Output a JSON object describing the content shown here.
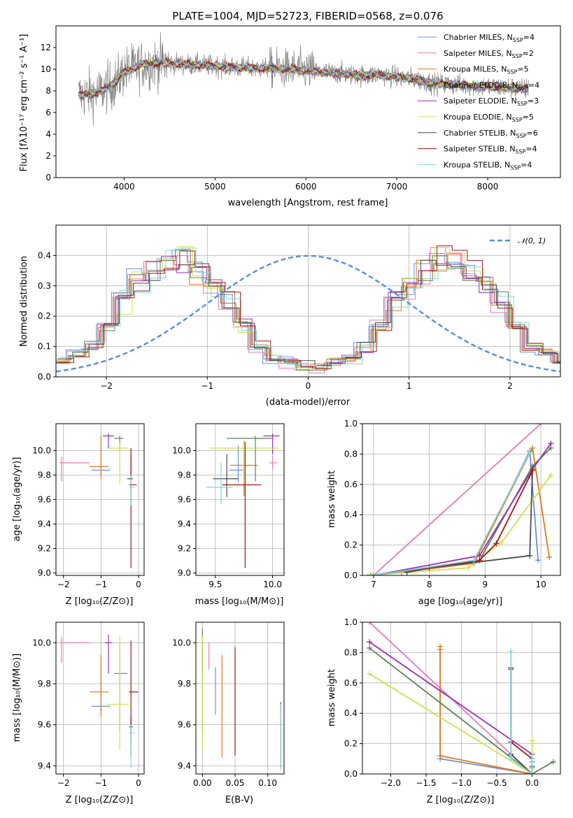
{
  "colors": {
    "Chabrier MILES": "#6a8fdc",
    "Salpeter MILES": "#e57ab0",
    "Kroupa MILES": "#e07a1f",
    "Chabrier ELODIE": "#5e7e5e",
    "Salpeter ELODIE": "#9b2fae",
    "Kroupa ELODIE": "#cfe04a",
    "Chabrier STELIB": "#4a4a4a",
    "Salpeter STELIB": "#a31515",
    "Kroupa STELIB": "#7fd8e0",
    "data": "#7f7f7f"
  },
  "chart_data": [
    {
      "id": "spectrum",
      "type": "line",
      "title": "PLATE=1004, MJD=52723, FIBERID=0568, z=0.076",
      "xlabel": "wavelength [Angstrom, rest frame]",
      "ylabel": "Flux [fλ10⁻¹⁷ erg cm⁻² s⁻¹ A⁻¹]",
      "xlim": [
        3250,
        8800
      ],
      "ylim": [
        0,
        14
      ],
      "xticks": [
        4000,
        5000,
        6000,
        7000,
        8000
      ],
      "yticks": [
        0,
        2,
        4,
        6,
        8,
        10,
        12
      ],
      "grid": false,
      "legend_position": "top-right",
      "continuum": {
        "x": [
          3500,
          3700,
          3900,
          4000,
          4200,
          4400,
          4600,
          4800,
          5000,
          5200,
          5400,
          5600,
          5800,
          6000,
          6200,
          6400,
          6600,
          6800,
          7000,
          7200,
          7400,
          7600,
          7800,
          8000,
          8200,
          8400
        ],
        "y": [
          7.6,
          7.8,
          8.7,
          9.8,
          10.4,
          10.6,
          10.5,
          10.4,
          10.3,
          10.2,
          10.1,
          10.1,
          10.0,
          9.9,
          9.7,
          9.6,
          9.4,
          9.5,
          9.3,
          9.1,
          8.7,
          8.6,
          8.5,
          8.4,
          8.3,
          8.2
        ]
      },
      "legend": [
        {
          "name": "Chabrier MILES, N_SSP=4",
          "base": "Chabrier MILES, N",
          "sub": "SSP",
          "tail": "=4"
        },
        {
          "name": "Salpeter MILES, N_SSP=2",
          "base": "Salpeter MILES, N",
          "sub": "SSP",
          "tail": "=2"
        },
        {
          "name": "Kroupa MILES, N_SSP=5",
          "base": "Kroupa MILES, N",
          "sub": "SSP",
          "tail": "=5"
        },
        {
          "name": "Chabrier ELODIE, N_SSP=4",
          "base": "Chabrier ELODIE, N",
          "sub": "SSP",
          "tail": "=4"
        },
        {
          "name": "Salpeter ELODIE, N_SSP=3",
          "base": "Salpeter ELODIE, N",
          "sub": "SSP",
          "tail": "=3"
        },
        {
          "name": "Kroupa ELODIE, N_SSP=5",
          "base": "Kroupa ELODIE, N",
          "sub": "SSP",
          "tail": "=5"
        },
        {
          "name": "Chabrier STELIB, N_SSP=6",
          "base": "Chabrier STELIB, N",
          "sub": "SSP",
          "tail": "=6"
        },
        {
          "name": "Salpeter STELIB, N_SSP=4",
          "base": "Salpeter STELIB, N",
          "sub": "SSP",
          "tail": "=4"
        },
        {
          "name": "Kroupa STELIB, N_SSP=4",
          "base": "Kroupa STELIB, N",
          "sub": "SSP",
          "tail": "=4"
        }
      ]
    },
    {
      "id": "residuals",
      "type": "bar",
      "xlabel": "(data-model)/error",
      "ylabel": "Normed distribution",
      "xlim": [
        -2.5,
        2.5
      ],
      "ylim": [
        0,
        0.5
      ],
      "xticks": [
        -2,
        -1,
        0,
        1,
        2
      ],
      "yticks": [
        0.0,
        0.1,
        0.2,
        0.3,
        0.4
      ],
      "grid": true,
      "legend": "𝒩(0, 1)",
      "legend_position": "top-right",
      "bin_width": 0.1,
      "histogram_envelope": [
        0.02,
        0.03,
        0.035,
        0.05,
        0.06,
        0.08,
        0.1,
        0.13,
        0.17,
        0.21,
        0.25,
        0.29,
        0.32,
        0.35,
        0.37,
        0.39,
        0.395,
        0.39,
        0.37,
        0.35,
        0.32,
        0.29,
        0.25,
        0.21,
        0.17,
        0.13,
        0.1,
        0.08,
        0.06,
        0.05,
        0.04
      ]
    },
    {
      "id": "age-vs-Z",
      "type": "scatter",
      "xlabel": "Z [log₁₀(Z/Z⊙)]",
      "ylabel": "age  [log₁₀(age/yr)]",
      "xlim": [
        -2.2,
        0.15
      ],
      "ylim": [
        8.98,
        10.22
      ],
      "xticks": [
        -2,
        -1,
        0
      ],
      "yticks": [
        9.0,
        9.2,
        9.4,
        9.6,
        9.8,
        10.0
      ],
      "grid": true,
      "points": [
        {
          "series": "Chabrier MILES",
          "x": -1.0,
          "y": 9.84,
          "xerr": [
            0.25,
            0.25
          ],
          "yerr": [
            0.05,
            0.2
          ]
        },
        {
          "series": "Salpeter MILES",
          "x": -2.05,
          "y": 9.9,
          "xerr": [
            0.05,
            0.75
          ],
          "yerr": [
            0.15,
            0.05
          ]
        },
        {
          "series": "Kroupa MILES",
          "x": -1.0,
          "y": 9.87,
          "xerr": [
            0.3,
            0.2
          ],
          "yerr": [
            0.1,
            0.25
          ]
        },
        {
          "series": "Chabrier ELODIE",
          "x": -0.5,
          "y": 10.1,
          "xerr": [
            0.15,
            0.1
          ],
          "yerr": [
            0.1,
            0.02
          ]
        },
        {
          "series": "Salpeter ELODIE",
          "x": -0.8,
          "y": 10.12,
          "xerr": [
            0.15,
            0.15
          ],
          "yerr": [
            0.1,
            0.02
          ]
        },
        {
          "series": "Kroupa ELODIE",
          "x": -0.5,
          "y": 10.02,
          "xerr": [
            0.35,
            0.25
          ],
          "yerr": [
            0.3,
            0.05
          ]
        },
        {
          "series": "Chabrier STELIB",
          "x": -0.2,
          "y": 9.77,
          "xerr": [
            0.1,
            0.05
          ],
          "yerr": [
            0.2,
            0.2
          ]
        },
        {
          "series": "Salpeter STELIB",
          "x": -0.2,
          "y": 9.72,
          "xerr": [
            0.05,
            0.15
          ],
          "yerr": [
            0.68,
            0.3
          ]
        },
        {
          "series": "Kroupa STELIB",
          "x": -0.2,
          "y": 9.7,
          "xerr": [
            0.05,
            0.1
          ],
          "yerr": [
            0.15,
            0.1
          ]
        }
      ]
    },
    {
      "id": "age-vs-mass",
      "type": "scatter",
      "xlabel": "mass [log₁₀(M/M⊙)]",
      "ylabel": "",
      "xlim": [
        9.33,
        10.1
      ],
      "ylim": [
        8.98,
        10.22
      ],
      "xticks": [
        9.5,
        10.0
      ],
      "yticks": [
        9.0,
        9.2,
        9.4,
        9.6,
        9.8,
        10.0
      ],
      "grid": true,
      "points": [
        {
          "series": "Chabrier MILES",
          "x": 9.7,
          "y": 9.84,
          "xerr": [
            0.08,
            0.05
          ],
          "yerr": [
            0.1,
            0.2
          ]
        },
        {
          "series": "Salpeter MILES",
          "x": 10.0,
          "y": 9.9,
          "xerr": [
            0.03,
            0.04
          ],
          "yerr": [
            0.05,
            0.05
          ]
        },
        {
          "series": "Kroupa MILES",
          "x": 9.75,
          "y": 9.88,
          "xerr": [
            0.12,
            0.12
          ],
          "yerr": [
            0.25,
            0.2
          ]
        },
        {
          "series": "Chabrier ELODIE",
          "x": 9.85,
          "y": 10.1,
          "xerr": [
            0.25,
            0.15
          ],
          "yerr": [
            0.35,
            0.02
          ]
        },
        {
          "series": "Salpeter ELODIE",
          "x": 10.0,
          "y": 10.12,
          "xerr": [
            0.08,
            0.06
          ],
          "yerr": [
            0.15,
            0.02
          ]
        },
        {
          "series": "Kroupa ELODIE",
          "x": 9.75,
          "y": 10.02,
          "xerr": [
            0.3,
            0.3
          ],
          "yerr": [
            0.3,
            0.05
          ]
        },
        {
          "series": "Chabrier STELIB",
          "x": 9.6,
          "y": 9.77,
          "xerr": [
            0.12,
            0.1
          ],
          "yerr": [
            0.15,
            0.2
          ]
        },
        {
          "series": "Salpeter STELIB",
          "x": 9.76,
          "y": 9.72,
          "xerr": [
            0.2,
            0.14
          ],
          "yerr": [
            0.68,
            0.35
          ]
        },
        {
          "series": "Kroupa STELIB",
          "x": 9.55,
          "y": 9.7,
          "xerr": [
            0.13,
            0.1
          ],
          "yerr": [
            0.14,
            0.2
          ]
        }
      ]
    },
    {
      "id": "weight-vs-age",
      "type": "line",
      "xlabel": "age  [log₁₀(age/yr)]",
      "ylabel": "mass weight",
      "xlim": [
        6.8,
        10.35
      ],
      "ylim": [
        0,
        1
      ],
      "xticks": [
        7,
        8,
        9,
        10
      ],
      "yticks": [
        0.0,
        0.2,
        0.4,
        0.6,
        0.8,
        1.0
      ],
      "grid": true,
      "series": [
        {
          "name": "Chabrier MILES",
          "x": [
            7.5,
            8.8,
            9.8,
            9.95
          ],
          "y": [
            0.02,
            0.08,
            0.82,
            0.1
          ]
        },
        {
          "name": "Salpeter MILES",
          "x": [
            7.0,
            10.0
          ],
          "y": [
            0.0,
            1.0
          ]
        },
        {
          "name": "Kroupa MILES",
          "x": [
            7.0,
            8.8,
            9.85,
            10.15
          ],
          "y": [
            0.0,
            0.08,
            0.84,
            0.12
          ]
        },
        {
          "name": "Chabrier ELODIE",
          "x": [
            6.95,
            8.9,
            9.85,
            10.18
          ],
          "y": [
            0.0,
            0.1,
            0.72,
            0.84
          ]
        },
        {
          "name": "Salpeter ELODIE",
          "x": [
            7.0,
            8.9,
            9.85,
            10.18
          ],
          "y": [
            0.0,
            0.13,
            0.7,
            0.87
          ]
        },
        {
          "name": "Kroupa ELODIE",
          "x": [
            6.9,
            8.7,
            9.3,
            10.18
          ],
          "y": [
            0.0,
            0.05,
            0.22,
            0.66
          ]
        },
        {
          "name": "Chabrier STELIB",
          "x": [
            7.6,
            8.0,
            9.8,
            9.85
          ],
          "y": [
            0.02,
            0.05,
            0.13,
            0.7
          ]
        },
        {
          "name": "Salpeter STELIB",
          "x": [
            7.0,
            8.9,
            9.2,
            9.85
          ],
          "y": [
            0.0,
            0.1,
            0.21,
            0.69
          ]
        },
        {
          "name": "Kroupa STELIB",
          "x": [
            7.0,
            8.8,
            9.8
          ],
          "y": [
            0.0,
            0.1,
            0.81
          ]
        }
      ]
    },
    {
      "id": "mass-vs-Z",
      "type": "scatter",
      "xlabel": "Z [log₁₀(Z/Z⊙)]",
      "ylabel": "mass [log₁₀(M/M⊙)]",
      "xlim": [
        -2.2,
        0.15
      ],
      "ylim": [
        9.36,
        10.1
      ],
      "xticks": [
        -2,
        -1,
        0
      ],
      "yticks": [
        9.4,
        9.6,
        9.8,
        10.0
      ],
      "grid": true,
      "points": [
        {
          "series": "Chabrier MILES",
          "x": -1.0,
          "y": 9.69,
          "xerr": [
            0.25,
            0.25
          ],
          "yerr": [
            0.04,
            0.2
          ]
        },
        {
          "series": "Salpeter MILES",
          "x": -2.05,
          "y": 10.0,
          "xerr": [
            0.05,
            0.75
          ],
          "yerr": [
            0.1,
            0.03
          ]
        },
        {
          "series": "Kroupa MILES",
          "x": -1.0,
          "y": 9.76,
          "xerr": [
            0.3,
            0.2
          ],
          "yerr": [
            0.12,
            0.18
          ]
        },
        {
          "series": "Chabrier ELODIE",
          "x": -0.5,
          "y": 9.85,
          "xerr": [
            0.15,
            0.2
          ],
          "yerr": [
            0.28,
            0.15
          ]
        },
        {
          "series": "Salpeter ELODIE",
          "x": -0.8,
          "y": 10.0,
          "xerr": [
            0.1,
            0.1
          ],
          "yerr": [
            0.15,
            0.04
          ]
        },
        {
          "series": "Kroupa ELODIE",
          "x": -0.5,
          "y": 9.7,
          "xerr": [
            0.35,
            0.25
          ],
          "yerr": [
            0.22,
            0.33
          ]
        },
        {
          "series": "Chabrier STELIB",
          "x": -0.2,
          "y": 9.59,
          "xerr": [
            0.05,
            0.05
          ],
          "yerr": [
            0.05,
            0.05
          ]
        },
        {
          "series": "Salpeter STELIB",
          "x": -0.2,
          "y": 9.76,
          "xerr": [
            0.05,
            0.2
          ],
          "yerr": [
            0.31,
            0.25
          ]
        },
        {
          "series": "Kroupa STELIB",
          "x": -0.2,
          "y": 9.56,
          "xerr": [
            0.05,
            0.1
          ],
          "yerr": [
            0.17,
            0.04
          ]
        }
      ]
    },
    {
      "id": "mass-vs-ebv",
      "type": "scatter",
      "xlabel": "E(B-V)",
      "ylabel": "",
      "xlim": [
        -0.01,
        0.125
      ],
      "ylim": [
        9.36,
        10.1
      ],
      "xticks": [
        0.0,
        0.05,
        0.1
      ],
      "yticks": [
        9.4,
        9.6,
        9.8,
        10.0
      ],
      "grid": true,
      "points": [
        {
          "series": "Chabrier MILES",
          "x": 0.02,
          "y": 9.76,
          "xerr": [
            0,
            0
          ],
          "yerr": [
            0.11,
            0.12
          ]
        },
        {
          "series": "Salpeter MILES",
          "x": 0.01,
          "y": 9.97,
          "xerr": [
            0,
            0
          ],
          "yerr": [
            0.1,
            0.03
          ]
        },
        {
          "series": "Kroupa MILES",
          "x": 0.03,
          "y": 9.74,
          "xerr": [
            0,
            0
          ],
          "yerr": [
            0.3,
            0.2
          ]
        },
        {
          "series": "Chabrier ELODIE",
          "x": 0.0,
          "y": 9.85,
          "xerr": [
            0,
            0
          ],
          "yerr": [
            0.28,
            0.22
          ]
        },
        {
          "series": "Salpeter ELODIE",
          "x": 0.0,
          "y": 9.95,
          "xerr": [
            0,
            0
          ],
          "yerr": [
            0.1,
            0.06
          ]
        },
        {
          "series": "Kroupa ELODIE",
          "x": 0.0,
          "y": 9.7,
          "xerr": [
            0,
            0
          ],
          "yerr": [
            0.22,
            0.33
          ]
        },
        {
          "series": "Chabrier STELIB",
          "x": 0.12,
          "y": 9.59,
          "xerr": [
            0,
            0
          ],
          "yerr": [
            0.2,
            0.12
          ]
        },
        {
          "series": "Salpeter STELIB",
          "x": 0.05,
          "y": 9.7,
          "xerr": [
            0,
            0
          ],
          "yerr": [
            0.25,
            0.28
          ]
        },
        {
          "series": "Kroupa STELIB",
          "x": 0.12,
          "y": 9.5,
          "xerr": [
            0,
            0
          ],
          "yerr": [
            0.12,
            0.2
          ]
        }
      ]
    },
    {
      "id": "weight-vs-Z",
      "type": "line",
      "xlabel": "Z [log₁₀(Z/Z⊙)]",
      "ylabel": "mass weight",
      "xlim": [
        -2.4,
        0.4
      ],
      "ylim": [
        0,
        1
      ],
      "xticks": [
        -2.0,
        -1.5,
        -1.0,
        -0.5,
        0.0
      ],
      "yticks": [
        0.0,
        0.2,
        0.4,
        0.6,
        0.8,
        1.0
      ],
      "grid": true,
      "series": [
        {
          "name": "Chabrier MILES",
          "x": [
            -1.3,
            -1.3,
            0.0,
            0.0
          ],
          "y": [
            0.82,
            0.1,
            0.0,
            0.08
          ]
        },
        {
          "name": "Salpeter MILES",
          "x": [
            -2.3,
            0.0
          ],
          "y": [
            1.0,
            0.0
          ]
        },
        {
          "name": "Kroupa MILES",
          "x": [
            -1.3,
            -1.3,
            0.0,
            0.0
          ],
          "y": [
            0.84,
            0.12,
            0.0,
            0.04
          ]
        },
        {
          "name": "Chabrier ELODIE",
          "x": [
            -2.3,
            0.0,
            0.3
          ],
          "y": [
            0.83,
            0.0,
            0.08
          ]
        },
        {
          "name": "Salpeter ELODIE",
          "x": [
            -2.3,
            0.0,
            0.0
          ],
          "y": [
            0.87,
            0.13,
            0.0
          ]
        },
        {
          "name": "Kroupa ELODIE",
          "x": [
            -2.3,
            0.0,
            0.0
          ],
          "y": [
            0.66,
            0.0,
            0.22
          ]
        },
        {
          "name": "Chabrier STELIB",
          "x": [
            -0.3,
            -0.3,
            0.0,
            0.0
          ],
          "y": [
            0.7,
            0.13,
            0.0,
            0.05
          ]
        },
        {
          "name": "Salpeter STELIB",
          "x": [
            -0.3,
            -0.3,
            0.0,
            0.0
          ],
          "y": [
            0.69,
            0.21,
            0.1,
            0.0
          ]
        },
        {
          "name": "Kroupa STELIB",
          "x": [
            -0.3,
            -0.3,
            0.0,
            0.0
          ],
          "y": [
            0.81,
            0.1,
            0.0,
            0.1
          ]
        }
      ]
    }
  ]
}
